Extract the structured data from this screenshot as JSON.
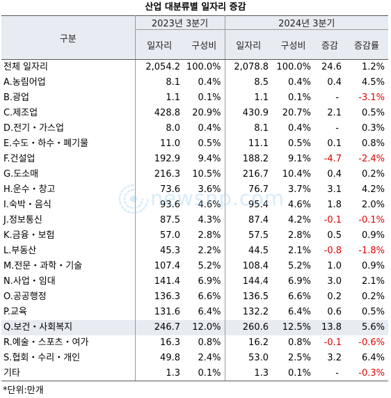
{
  "title": "산업 대분류별 일자리 증감",
  "header": {
    "category_label": "구분",
    "period_2023": "2023년 3분기",
    "period_2024": "2024년 3분기",
    "col_jobs": "일자리",
    "col_share": "구성비",
    "col_change": "증감",
    "col_change_rate": "증감률"
  },
  "rows": [
    {
      "label": "전체 일자리",
      "jobs_2023": "2,054.2",
      "share_2023": "100.0%",
      "jobs_2024": "2,078.8",
      "share_2024": "100.0%",
      "change": "24.6",
      "rate": "1.2%"
    },
    {
      "label": "A.농림어업",
      "jobs_2023": "8.1",
      "share_2023": "0.4%",
      "jobs_2024": "8.5",
      "share_2024": "0.4%",
      "change": "0.4",
      "rate": "4.5%"
    },
    {
      "label": "B.광업",
      "jobs_2023": "1.1",
      "share_2023": "0.1%",
      "jobs_2024": "1.1",
      "share_2024": "0.1%",
      "change": "-",
      "rate": "-3.1%"
    },
    {
      "label": "C.제조업",
      "jobs_2023": "428.8",
      "share_2023": "20.9%",
      "jobs_2024": "430.9",
      "share_2024": "20.7%",
      "change": "2.1",
      "rate": "0.5%"
    },
    {
      "label": "D.전기・가스업",
      "jobs_2023": "8.0",
      "share_2023": "0.4%",
      "jobs_2024": "8.1",
      "share_2024": "0.4%",
      "change": "-",
      "rate": "0.3%"
    },
    {
      "label": "E.수도・하수・폐기물",
      "jobs_2023": "11.0",
      "share_2023": "0.5%",
      "jobs_2024": "11.1",
      "share_2024": "0.5%",
      "change": "0.1",
      "rate": "0.8%"
    },
    {
      "label": "F.건설업",
      "jobs_2023": "192.9",
      "share_2023": "9.4%",
      "jobs_2024": "188.2",
      "share_2024": "9.1%",
      "change": "-4.7",
      "rate": "-2.4%"
    },
    {
      "label": "G.도소매",
      "jobs_2023": "216.3",
      "share_2023": "10.5%",
      "jobs_2024": "216.7",
      "share_2024": "10.4%",
      "change": "0.4",
      "rate": "0.2%"
    },
    {
      "label": "H.운수・창고",
      "jobs_2023": "73.6",
      "share_2023": "3.6%",
      "jobs_2024": "76.7",
      "share_2024": "3.7%",
      "change": "3.1",
      "rate": "4.2%"
    },
    {
      "label": "I.숙박・음식",
      "jobs_2023": "93.6",
      "share_2023": "4.6%",
      "jobs_2024": "95.4",
      "share_2024": "4.6%",
      "change": "1.8",
      "rate": "2.0%"
    },
    {
      "label": "J.정보통신",
      "jobs_2023": "87.5",
      "share_2023": "4.3%",
      "jobs_2024": "87.4",
      "share_2024": "4.2%",
      "change": "-0.1",
      "rate": "-0.1%"
    },
    {
      "label": "K.금융・보험",
      "jobs_2023": "57.0",
      "share_2023": "2.8%",
      "jobs_2024": "57.5",
      "share_2024": "2.8%",
      "change": "0.5",
      "rate": "0.9%"
    },
    {
      "label": "L.부동산",
      "jobs_2023": "45.3",
      "share_2023": "2.2%",
      "jobs_2024": "44.5",
      "share_2024": "2.1%",
      "change": "-0.8",
      "rate": "-1.8%"
    },
    {
      "label": "M.전문・과학・기술",
      "jobs_2023": "107.4",
      "share_2023": "5.2%",
      "jobs_2024": "108.4",
      "share_2024": "5.2%",
      "change": "1.0",
      "rate": "0.9%"
    },
    {
      "label": "N.사업・임대",
      "jobs_2023": "141.4",
      "share_2023": "6.9%",
      "jobs_2024": "144.4",
      "share_2024": "6.9%",
      "change": "3.0",
      "rate": "2.1%"
    },
    {
      "label": "O.공공행정",
      "jobs_2023": "136.3",
      "share_2023": "6.6%",
      "jobs_2024": "136.5",
      "share_2024": "6.6%",
      "change": "0.2",
      "rate": "0.2%"
    },
    {
      "label": "P.교육",
      "jobs_2023": "131.6",
      "share_2023": "6.4%",
      "jobs_2024": "132.2",
      "share_2024": "6.4%",
      "change": "0.6",
      "rate": "0.5%"
    },
    {
      "label": "Q.보건・사회복지",
      "jobs_2023": "246.7",
      "share_2023": "12.0%",
      "jobs_2024": "260.6",
      "share_2024": "12.5%",
      "change": "13.8",
      "rate": "5.6%",
      "highlight": true
    },
    {
      "label": "R.예술・스포츠・여가",
      "jobs_2023": "16.3",
      "share_2023": "0.8%",
      "jobs_2024": "16.2",
      "share_2024": "0.8%",
      "change": "-0.1",
      "rate": "-0.6%"
    },
    {
      "label": "S.협회・수리・개인",
      "jobs_2023": "49.8",
      "share_2023": "2.4%",
      "jobs_2024": "53.0",
      "share_2024": "2.5%",
      "change": "3.2",
      "rate": "6.4%"
    },
    {
      "label": "기타",
      "jobs_2023": "1.3",
      "share_2023": "0.1%",
      "jobs_2024": "1.3",
      "share_2024": "0.1%",
      "change": "-",
      "rate": "-0.3%"
    }
  ],
  "footnote": "*단위:만개",
  "watermark": "newsnp.com",
  "colors": {
    "header_bg": "#e9ebf3",
    "highlight_bg": "#e9ebf3",
    "negative": "#e00000",
    "watermark": "#8ec9ec"
  }
}
